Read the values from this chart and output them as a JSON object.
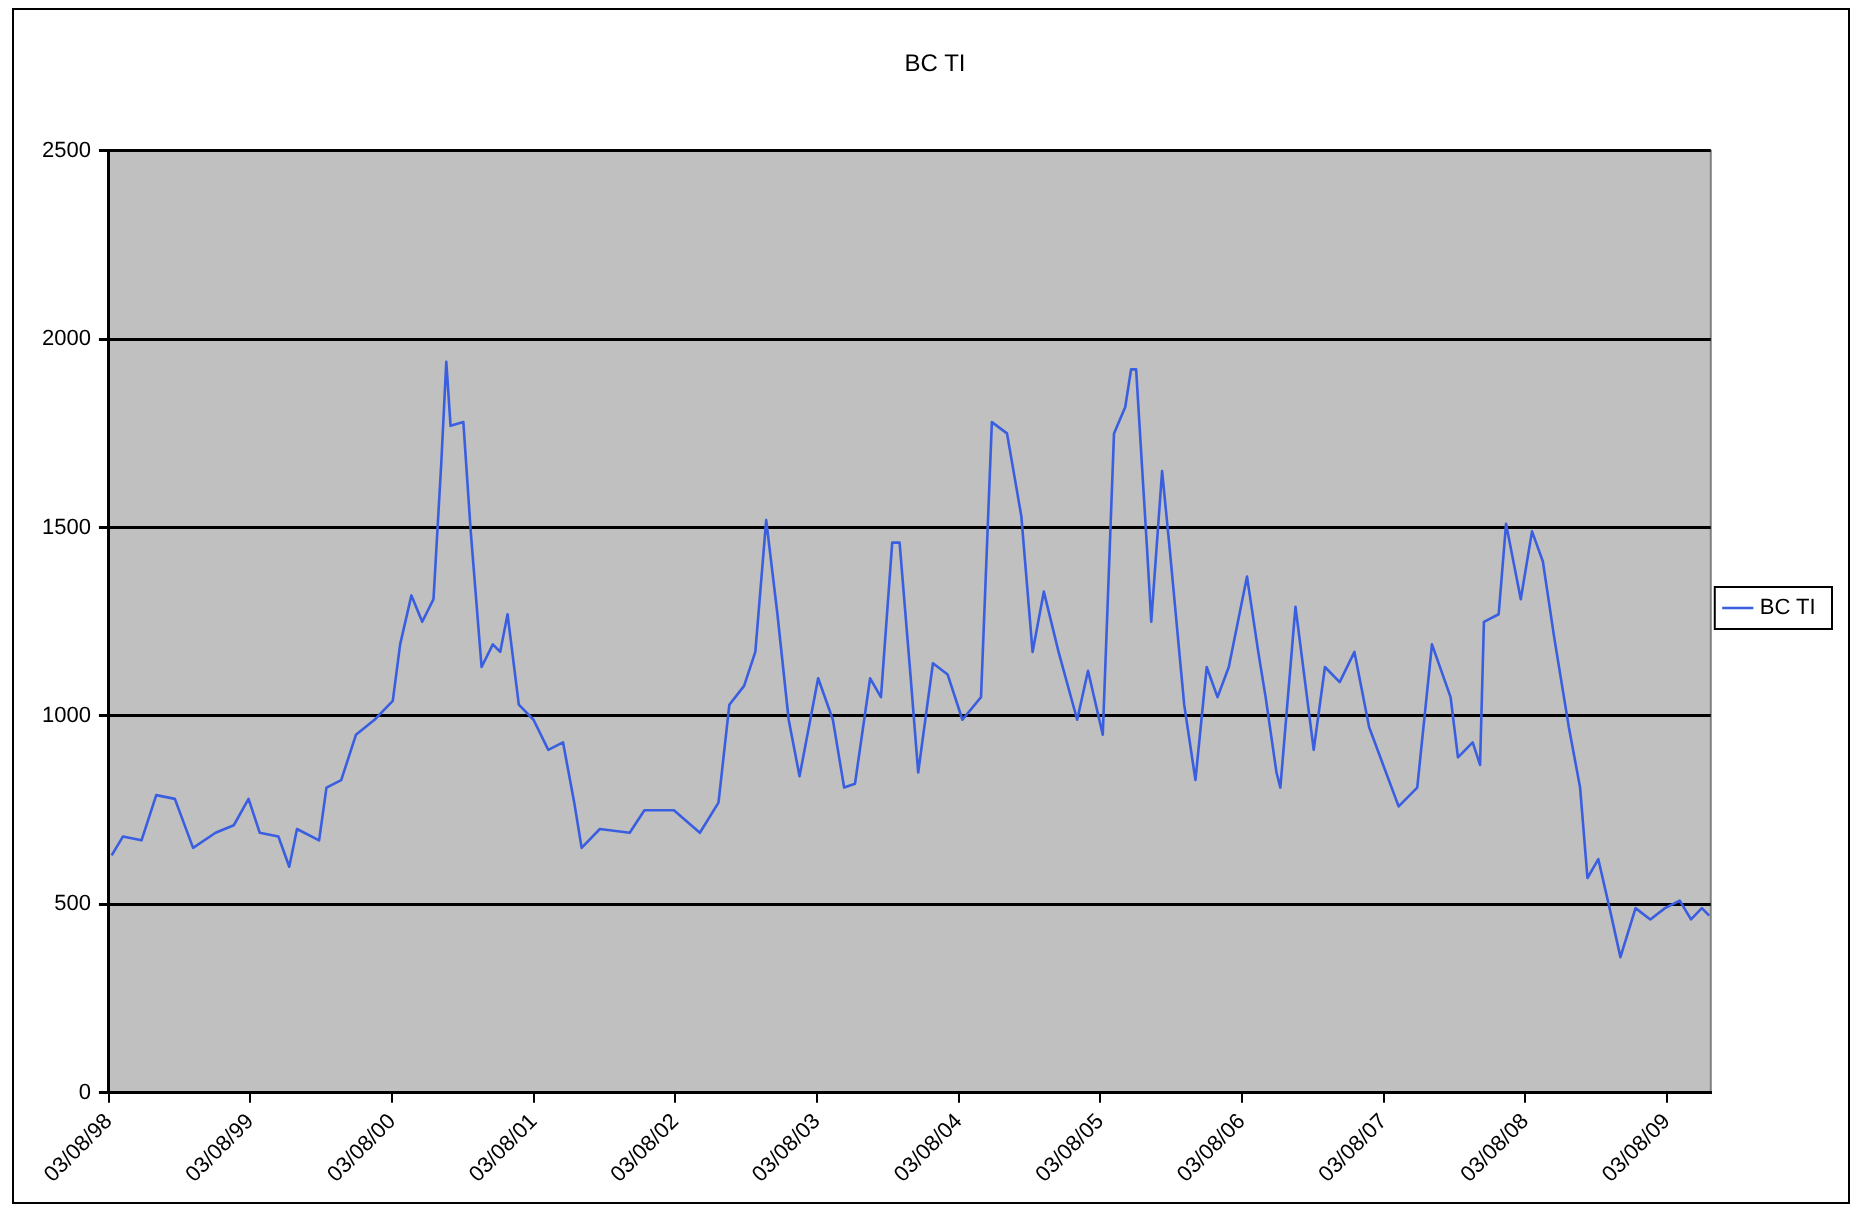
{
  "chart_data": {
    "type": "line",
    "title": "BC TI",
    "legend": "right",
    "grid": "y",
    "marker": "none",
    "line_style": "solid",
    "ylim": [
      0,
      2500
    ],
    "yticks": [
      0,
      500,
      1000,
      1500,
      2000,
      2500
    ],
    "xlim": [
      "1998-08-03",
      "2009-11-24"
    ],
    "xticks": [
      {
        "value": "1998-08-03",
        "label": "03/08/98"
      },
      {
        "value": "1999-08-03",
        "label": "03/08/99"
      },
      {
        "value": "2000-08-03",
        "label": "03/08/00"
      },
      {
        "value": "2001-08-03",
        "label": "03/08/01"
      },
      {
        "value": "2002-08-03",
        "label": "03/08/02"
      },
      {
        "value": "2003-08-03",
        "label": "03/08/03"
      },
      {
        "value": "2004-08-03",
        "label": "03/08/04"
      },
      {
        "value": "2005-08-03",
        "label": "03/08/05"
      },
      {
        "value": "2006-08-03",
        "label": "03/08/06"
      },
      {
        "value": "2007-08-03",
        "label": "03/08/07"
      },
      {
        "value": "2008-08-03",
        "label": "03/08/08"
      },
      {
        "value": "2009-08-03",
        "label": "03/08/09"
      }
    ],
    "x": [
      "1998-08-10",
      "1998-09-08",
      "1998-10-26",
      "1998-12-03",
      "1999-01-20",
      "1999-03-08",
      "1999-05-05",
      "1999-06-21",
      "1999-07-29",
      "1999-08-27",
      "1999-10-14",
      "1999-11-11",
      "1999-12-01",
      "2000-01-27",
      "2000-02-15",
      "2000-03-24",
      "2000-05-01",
      "2000-06-18",
      "2000-08-04",
      "2000-08-23",
      "2000-09-21",
      "2000-10-19",
      "2000-11-17",
      "2000-12-07",
      "2000-12-20",
      "2000-12-31",
      "2001-02-02",
      "2001-02-21",
      "2001-03-21",
      "2001-04-19",
      "2001-05-08",
      "2001-05-27",
      "2001-06-25",
      "2001-08-02",
      "2001-09-09",
      "2001-10-17",
      "2001-11-15",
      "2001-12-04",
      "2002-01-20",
      "2002-04-07",
      "2002-05-15",
      "2002-07-30",
      "2002-10-05",
      "2002-11-22",
      "2002-12-20",
      "2003-01-27",
      "2003-02-25",
      "2003-03-25",
      "2003-04-23",
      "2003-05-22",
      "2003-06-19",
      "2003-08-06",
      "2003-09-13",
      "2003-10-12",
      "2003-11-09",
      "2003-12-18",
      "2004-01-15",
      "2004-02-13",
      "2004-03-03",
      "2004-03-31",
      "2004-04-20",
      "2004-05-28",
      "2004-07-05",
      "2004-08-12",
      "2004-09-29",
      "2004-10-27",
      "2004-12-05",
      "2005-01-11",
      "2005-02-09",
      "2005-03-10",
      "2005-04-17",
      "2005-06-04",
      "2005-07-02",
      "2005-08-09",
      "2005-09-07",
      "2005-10-06",
      "2005-10-21",
      "2005-11-03",
      "2005-12-02",
      "2005-12-12",
      "2006-01-09",
      "2006-01-28",
      "2006-03-07",
      "2006-04-05",
      "2006-05-04",
      "2006-06-01",
      "2006-06-30",
      "2006-08-16",
      "2006-09-14",
      "2006-10-03",
      "2006-10-31",
      "2006-11-10",
      "2006-12-19",
      "2007-02-04",
      "2007-03-05",
      "2007-04-12",
      "2007-05-20",
      "2007-06-27",
      "2007-09-11",
      "2007-10-29",
      "2007-12-06",
      "2008-01-23",
      "2008-02-11",
      "2008-03-20",
      "2008-04-08",
      "2008-04-18",
      "2008-05-26",
      "2008-06-14",
      "2008-07-22",
      "2008-08-20",
      "2008-09-17",
      "2008-10-16",
      "2008-11-23",
      "2008-12-22",
      "2009-01-10",
      "2009-02-07",
      "2009-03-08",
      "2009-04-05",
      "2009-05-14",
      "2009-06-21",
      "2009-07-29",
      "2009-09-05",
      "2009-10-04",
      "2009-11-01",
      "2009-11-20"
    ],
    "series": [
      {
        "name": "BC TI",
        "color": "#3a5ee0",
        "values": [
          630,
          680,
          670,
          790,
          780,
          650,
          690,
          710,
          780,
          690,
          680,
          600,
          700,
          670,
          810,
          830,
          950,
          990,
          1040,
          1190,
          1320,
          1250,
          1310,
          1670,
          1940,
          1770,
          1780,
          1490,
          1130,
          1190,
          1170,
          1270,
          1030,
          990,
          910,
          930,
          770,
          650,
          700,
          690,
          750,
          750,
          690,
          770,
          1030,
          1080,
          1170,
          1520,
          1270,
          990,
          840,
          1100,
          990,
          810,
          820,
          1100,
          1050,
          1460,
          1460,
          1110,
          850,
          1140,
          1110,
          990,
          1050,
          1780,
          1750,
          1530,
          1170,
          1330,
          1170,
          990,
          1120,
          950,
          1750,
          1820,
          1920,
          1920,
          1430,
          1250,
          1650,
          1450,
          1030,
          830,
          1130,
          1050,
          1130,
          1370,
          1170,
          1050,
          850,
          810,
          1290,
          910,
          1130,
          1090,
          1170,
          970,
          760,
          810,
          1190,
          1050,
          890,
          930,
          870,
          1250,
          1270,
          1510,
          1310,
          1490,
          1410,
          1210,
          970,
          810,
          570,
          620,
          490,
          360,
          490,
          460,
          490,
          510,
          460,
          490,
          470
        ]
      }
    ]
  }
}
